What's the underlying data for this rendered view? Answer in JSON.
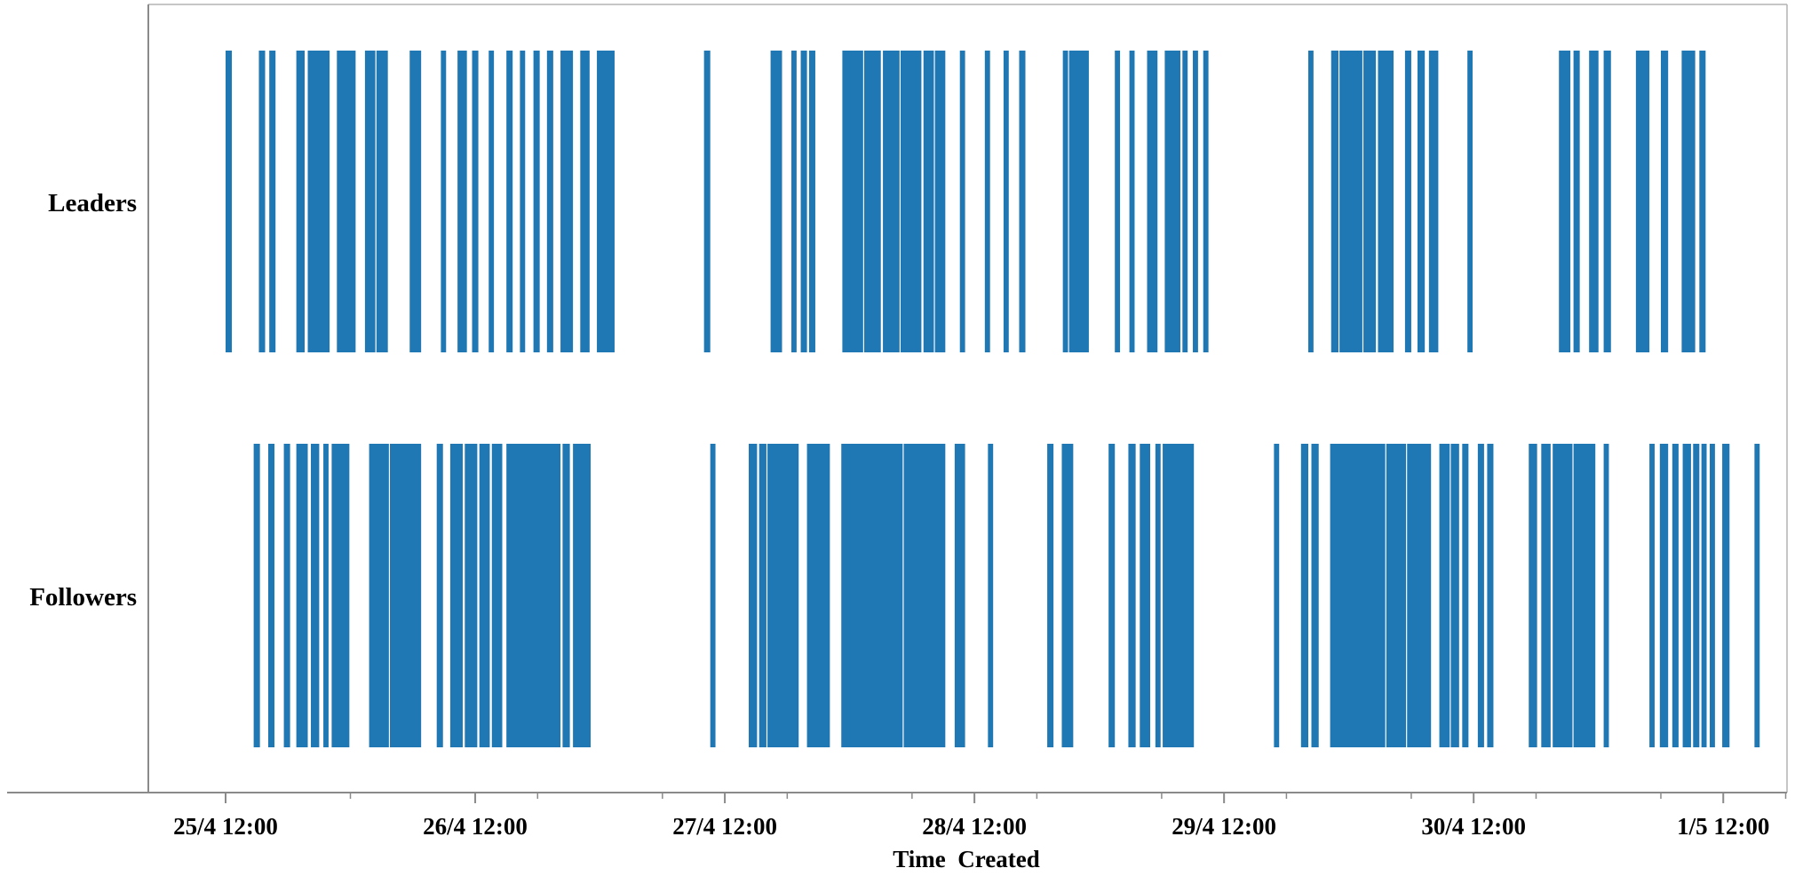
{
  "chart_data": {
    "type": "event-strip",
    "xlabel": "Time  Created",
    "x_ticks": [
      "25/4 12:00",
      "26/4 12:00",
      "27/4 12:00",
      "28/4 12:00",
      "29/4 12:00",
      "30/4 12:00",
      "1/5 12:00"
    ],
    "x_range_hours": [
      -7,
      159
    ],
    "minor_tick_hours": [
      0,
      12,
      30,
      42,
      54,
      66,
      78,
      90,
      102,
      114,
      126,
      138,
      150,
      156
    ],
    "bar_color": "#1f77b4",
    "series": [
      {
        "name": "Leaders",
        "events": [
          [
            0.0,
            0.6
          ],
          [
            3.2,
            3.8
          ],
          [
            4.2,
            4.8
          ],
          [
            6.8,
            7.6
          ],
          [
            7.9,
            10.0
          ],
          [
            10.7,
            12.5
          ],
          [
            13.4,
            14.4
          ],
          [
            14.5,
            15.6
          ],
          [
            17.7,
            18.8
          ],
          [
            20.7,
            21.2
          ],
          [
            22.3,
            23.2
          ],
          [
            23.7,
            24.3
          ],
          [
            25.3,
            25.8
          ],
          [
            27.0,
            27.6
          ],
          [
            28.3,
            28.8
          ],
          [
            29.6,
            30.2
          ],
          [
            30.9,
            31.5
          ],
          [
            32.2,
            33.4
          ],
          [
            34.1,
            35.0
          ],
          [
            35.7,
            37.4
          ],
          [
            46.0,
            46.6
          ],
          [
            52.4,
            53.5
          ],
          [
            54.4,
            54.9
          ],
          [
            55.3,
            55.9
          ],
          [
            56.1,
            56.7
          ],
          [
            59.3,
            61.3
          ],
          [
            61.4,
            63.0
          ],
          [
            63.2,
            64.8
          ],
          [
            64.9,
            66.9
          ],
          [
            67.1,
            68.1
          ],
          [
            68.2,
            69.2
          ],
          [
            70.6,
            71.1
          ],
          [
            73.0,
            73.5
          ],
          [
            74.8,
            75.3
          ],
          [
            76.3,
            76.9
          ],
          [
            80.5,
            81.0
          ],
          [
            81.1,
            83.0
          ],
          [
            85.5,
            86.0
          ],
          [
            86.9,
            87.4
          ],
          [
            88.6,
            89.6
          ],
          [
            90.3,
            91.8
          ],
          [
            92.0,
            92.5
          ],
          [
            93.0,
            93.5
          ],
          [
            94.0,
            94.5
          ],
          [
            104.1,
            104.6
          ],
          [
            106.3,
            107.0
          ],
          [
            107.1,
            109.3
          ],
          [
            109.4,
            110.6
          ],
          [
            110.8,
            112.3
          ],
          [
            113.4,
            114.0
          ],
          [
            114.6,
            115.3
          ],
          [
            115.7,
            116.6
          ],
          [
            119.4,
            119.9
          ],
          [
            128.2,
            129.3
          ],
          [
            129.6,
            130.2
          ],
          [
            131.1,
            132.0
          ],
          [
            132.5,
            133.2
          ],
          [
            135.6,
            136.9
          ],
          [
            138.0,
            138.7
          ],
          [
            140.0,
            141.3
          ],
          [
            141.7,
            142.3
          ]
        ]
      },
      {
        "name": "Followers",
        "events": [
          [
            2.7,
            3.3
          ],
          [
            4.1,
            4.7
          ],
          [
            5.6,
            6.2
          ],
          [
            6.8,
            7.9
          ],
          [
            8.2,
            9.0
          ],
          [
            9.4,
            9.9
          ],
          [
            10.2,
            11.9
          ],
          [
            13.8,
            15.7
          ],
          [
            15.8,
            18.8
          ],
          [
            20.3,
            20.9
          ],
          [
            21.6,
            22.8
          ],
          [
            23.0,
            24.2
          ],
          [
            24.4,
            25.4
          ],
          [
            25.6,
            26.6
          ],
          [
            27.0,
            32.2
          ],
          [
            32.4,
            33.1
          ],
          [
            33.4,
            35.1
          ],
          [
            46.6,
            47.1
          ],
          [
            50.3,
            51.1
          ],
          [
            51.3,
            52.0
          ],
          [
            52.1,
            55.1
          ],
          [
            55.9,
            58.1
          ],
          [
            59.2,
            65.1
          ],
          [
            65.2,
            69.2
          ],
          [
            70.1,
            71.1
          ],
          [
            73.3,
            73.8
          ],
          [
            79.0,
            79.6
          ],
          [
            80.4,
            81.5
          ],
          [
            84.9,
            85.5
          ],
          [
            86.8,
            87.5
          ],
          [
            87.9,
            88.9
          ],
          [
            89.4,
            89.9
          ],
          [
            90.1,
            93.1
          ],
          [
            100.8,
            101.3
          ],
          [
            103.4,
            104.1
          ],
          [
            104.4,
            105.1
          ],
          [
            106.2,
            111.5
          ],
          [
            111.6,
            113.5
          ],
          [
            113.6,
            115.9
          ],
          [
            116.7,
            117.7
          ],
          [
            117.8,
            118.6
          ],
          [
            118.9,
            119.5
          ],
          [
            120.4,
            121.0
          ],
          [
            121.3,
            121.9
          ],
          [
            125.3,
            126.1
          ],
          [
            126.5,
            127.4
          ],
          [
            127.6,
            129.5
          ],
          [
            129.6,
            131.7
          ],
          [
            132.5,
            133.0
          ],
          [
            136.9,
            137.4
          ],
          [
            137.9,
            138.7
          ],
          [
            139.1,
            139.7
          ],
          [
            140.1,
            140.9
          ],
          [
            141.1,
            141.7
          ],
          [
            141.9,
            142.4
          ],
          [
            142.7,
            143.2
          ],
          [
            143.9,
            144.6
          ],
          [
            147.0,
            147.5
          ]
        ]
      }
    ]
  }
}
